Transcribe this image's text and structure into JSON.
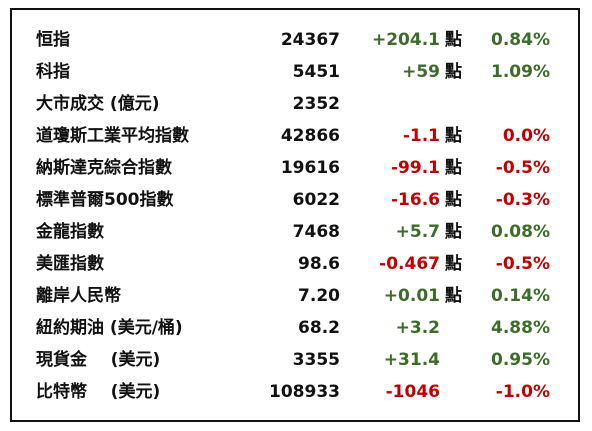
{
  "table": {
    "rows": [
      {
        "name": "恒指",
        "value": "24367",
        "change": "+204.1",
        "unit": "點",
        "percent": "0.84%",
        "color": "#3d6b2a"
      },
      {
        "name": "科指",
        "value": "5451",
        "change": "+59",
        "unit": "點",
        "percent": "1.09%",
        "color": "#3d6b2a"
      },
      {
        "name": "大市成交 (億元)",
        "value": "2352"
      },
      {
        "name": "道瓊斯工業平均指數",
        "value": "42866",
        "change": "-1.1",
        "unit": "點",
        "percent": "0.0%",
        "color": "#c00000"
      },
      {
        "name": "納斯達克綜合指數",
        "value": "19616",
        "change": "-99.1",
        "unit": "點",
        "percent": "-0.5%",
        "color": "#c00000"
      },
      {
        "name": "標準普爾500指數",
        "value": "6022",
        "change": "-16.6",
        "unit": "點",
        "percent": "-0.3%",
        "color": "#c00000"
      },
      {
        "name": "金龍指數",
        "value": "7468",
        "change": "+5.7",
        "unit": "點",
        "percent": "0.08%",
        "color": "#3d6b2a"
      },
      {
        "name": "美匯指數",
        "value": "98.6",
        "change": "-0.467",
        "unit": "點",
        "percent": "-0.5%",
        "color": "#c00000"
      },
      {
        "name": "離岸人民幣",
        "value": "7.20",
        "change": "+0.01",
        "unit": "點",
        "percent": "0.14%",
        "color": "#3d6b2a"
      },
      {
        "name": "紐約期油 (美元/桶)",
        "value": "68.2",
        "change": "+3.2",
        "percent": "4.88%",
        "color": "#3d6b2a"
      },
      {
        "name": "現貨金    (美元)",
        "value": "3355",
        "change": "+31.4",
        "percent": "0.95%",
        "color": "#3d6b2a"
      },
      {
        "name": "比特幣    (美元)",
        "value": "108933",
        "change": "-1046",
        "percent": "-1.0%",
        "color": "#c00000"
      }
    ]
  }
}
